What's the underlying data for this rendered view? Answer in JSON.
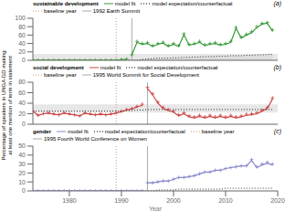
{
  "chart_data": [
    {
      "type": "line",
      "title": "sustainable development",
      "annotations": [
        "(a)"
      ],
      "x": [
        1973,
        1974,
        1975,
        1976,
        1977,
        1978,
        1979,
        1980,
        1981,
        1982,
        1983,
        1984,
        1985,
        1986,
        1987,
        1988,
        1989,
        1990,
        1991,
        1992,
        1993,
        1994,
        1995,
        1996,
        1997,
        1998,
        1999,
        2000,
        2001,
        2002,
        2003,
        2004,
        2005,
        2006,
        2007,
        2008,
        2009,
        2010,
        2011,
        2012,
        2013,
        2014,
        2015,
        2016,
        2017,
        2018,
        2019
      ],
      "xlim": [
        1973,
        2020
      ],
      "xticks": [
        1980,
        1990,
        2000,
        2010,
        2020
      ],
      "ylim": [
        0,
        100
      ],
      "yticks": [
        0,
        20,
        40,
        60,
        80,
        100
      ],
      "grid": false,
      "tick_labels": "y",
      "band": {
        "y": [
          0,
          15
        ],
        "color": "#d0d0d0"
      },
      "vlines": [
        {
          "x": 1989,
          "label": "baseline year",
          "color": "#cc9977",
          "line_style": "dotted"
        },
        {
          "x": 1992,
          "label": "1992 Earth Summit",
          "color": "#aaaaaa",
          "line_style": "solid"
        }
      ],
      "series": [
        {
          "name": "model fit",
          "type": "line",
          "color": "#3a9a3a",
          "line_style": "solid",
          "values": [
            0,
            0,
            0,
            0,
            0,
            0,
            0,
            0,
            0,
            0,
            0,
            0,
            0,
            0,
            0,
            0,
            0,
            1,
            2,
            null,
            null,
            null,
            null,
            null,
            null,
            null,
            null,
            null,
            null,
            null,
            null,
            null,
            null,
            null,
            null,
            null,
            null,
            null,
            null,
            null,
            null,
            null,
            null,
            null,
            null,
            null,
            null
          ]
        },
        {
          "type": "line",
          "color": "#3a9a3a",
          "line_style": "solid",
          "values": [
            null,
            null,
            null,
            null,
            null,
            null,
            null,
            null,
            null,
            null,
            null,
            null,
            null,
            null,
            null,
            null,
            null,
            null,
            null,
            13,
            43,
            38,
            40,
            33,
            38,
            41,
            33,
            38,
            33,
            61,
            36,
            38,
            43,
            35,
            38,
            40,
            36,
            38,
            43,
            76,
            53,
            60,
            66,
            78,
            86,
            88,
            70
          ]
        },
        {
          "name": "model expectation/counterfactual",
          "type": "area",
          "color": "#000000",
          "line_style": "dotted",
          "values": [
            0,
            0,
            0,
            0,
            0,
            0,
            0,
            0,
            0,
            0,
            0,
            0,
            0,
            0,
            0,
            0,
            0,
            0,
            0,
            0,
            0,
            2,
            3,
            4,
            5,
            5,
            5,
            6,
            6,
            7,
            7,
            8,
            8,
            9,
            9,
            9,
            10,
            10,
            11,
            11,
            11,
            12,
            12,
            13,
            13,
            14,
            14
          ]
        },
        {
          "type": "scatter",
          "color": "#3a9a3a",
          "marker": "plus",
          "values": [
            0,
            0,
            0,
            0,
            0,
            0,
            0,
            0,
            0,
            0,
            0,
            0,
            0,
            0,
            0,
            0,
            0,
            2,
            3,
            13,
            45,
            40,
            42,
            35,
            40,
            43,
            35,
            40,
            35,
            63,
            38,
            40,
            45,
            37,
            40,
            42,
            38,
            40,
            45,
            78,
            55,
            62,
            68,
            80,
            88,
            90,
            72
          ]
        }
      ]
    },
    {
      "type": "line",
      "title": "social development",
      "annotations": [
        "(b)"
      ],
      "ylabel": "Percentage of speakers in UNGA GD making at least one mention of term in statement",
      "x": [
        1973,
        1974,
        1975,
        1976,
        1977,
        1978,
        1979,
        1980,
        1981,
        1982,
        1983,
        1984,
        1985,
        1986,
        1987,
        1988,
        1989,
        1990,
        1991,
        1992,
        1993,
        1994,
        1995,
        1996,
        1997,
        1998,
        1999,
        2000,
        2001,
        2002,
        2003,
        2004,
        2005,
        2006,
        2007,
        2008,
        2009,
        2010,
        2011,
        2012,
        2013,
        2014,
        2015,
        2016,
        2017,
        2018,
        2019
      ],
      "xlim": [
        1973,
        2020
      ],
      "xticks": [
        1980,
        1990,
        2000,
        2010,
        2020
      ],
      "ylim": [
        0,
        80
      ],
      "yticks": [
        0,
        20,
        40,
        60,
        80
      ],
      "grid": false,
      "tick_labels": "y",
      "band": {
        "y": [
          22,
          38
        ],
        "color": "#d0d0d0"
      },
      "vlines": [
        {
          "x": 1989,
          "label": "baseline year",
          "color": "#cc9977",
          "line_style": "dotted"
        },
        {
          "x": 1995,
          "label": "1995 World Summit for Social Development",
          "color": "#aaaaaa",
          "line_style": "solid"
        }
      ],
      "series": [
        {
          "name": "model fit",
          "type": "line",
          "color": "#cc4444",
          "line_style": "solid",
          "values": [
            25,
            17,
            20,
            21,
            19,
            18,
            21,
            19,
            18,
            16,
            21,
            19,
            18,
            19,
            18,
            19,
            21,
            24,
            27,
            29,
            33,
            36,
            null,
            null,
            null,
            null,
            null,
            null,
            null,
            null,
            null,
            null,
            null,
            null,
            null,
            null,
            null,
            null,
            null,
            null,
            null,
            null,
            null,
            null,
            null,
            null,
            null
          ]
        },
        {
          "type": "line",
          "color": "#cc4444",
          "line_style": "solid",
          "values": [
            null,
            null,
            null,
            null,
            null,
            null,
            null,
            null,
            null,
            null,
            null,
            null,
            null,
            null,
            null,
            null,
            null,
            null,
            null,
            null,
            null,
            null,
            68,
            56,
            40,
            30,
            26,
            23,
            16,
            20,
            14,
            12,
            15,
            12,
            15,
            12,
            15,
            12,
            15,
            12,
            14,
            17,
            18,
            20,
            25,
            30,
            48
          ]
        },
        {
          "name": "model expectation/counterfactual",
          "type": "line",
          "color": "#000000",
          "line_style": "dotted",
          "values": [
            25,
            25,
            25,
            25,
            25,
            25,
            25,
            25,
            25,
            25,
            25,
            25,
            25,
            25,
            25,
            25,
            25,
            25,
            26,
            26,
            27,
            27,
            28,
            28,
            28,
            28,
            28,
            28,
            28,
            28,
            28,
            28,
            28,
            28,
            28,
            28,
            28,
            28,
            28,
            28,
            28,
            28,
            28,
            28,
            28,
            28,
            28
          ]
        },
        {
          "type": "scatter",
          "color": "#cc4444",
          "marker": "plus",
          "values": [
            25,
            17,
            20,
            22,
            20,
            18,
            22,
            20,
            18,
            16,
            22,
            20,
            18,
            20,
            18,
            20,
            22,
            25,
            28,
            30,
            34,
            38,
            70,
            58,
            42,
            32,
            28,
            25,
            18,
            22,
            16,
            14,
            17,
            14,
            17,
            14,
            17,
            14,
            17,
            14,
            16,
            19,
            20,
            22,
            27,
            32,
            50
          ]
        }
      ]
    },
    {
      "type": "line",
      "title": "gender",
      "annotations": [
        "(c)"
      ],
      "xlabel": "Year",
      "x": [
        1973,
        1974,
        1975,
        1976,
        1977,
        1978,
        1979,
        1980,
        1981,
        1982,
        1983,
        1984,
        1985,
        1986,
        1987,
        1988,
        1989,
        1990,
        1991,
        1992,
        1993,
        1994,
        1995,
        1996,
        1997,
        1998,
        1999,
        2000,
        2001,
        2002,
        2003,
        2004,
        2005,
        2006,
        2007,
        2008,
        2009,
        2010,
        2011,
        2012,
        2013,
        2014,
        2015,
        2016,
        2017,
        2018,
        2019
      ],
      "xlim": [
        1973,
        2020
      ],
      "xticks": [
        1980,
        1990,
        2000,
        2010,
        2020
      ],
      "ylim": [
        0,
        50
      ],
      "yticks": [
        0,
        10,
        20,
        30,
        40,
        50
      ],
      "grid": false,
      "vlines": [
        {
          "x": 1989,
          "label": "baseline year",
          "color": "#cc9977",
          "line_style": "dotted"
        },
        {
          "x": 1995,
          "label": "1995 Fourth World Conference on Women",
          "color": "#aaaaaa",
          "line_style": "solid"
        }
      ],
      "series": [
        {
          "name": "model fit",
          "type": "line",
          "color": "#8888cc",
          "line_style": "solid",
          "values": [
            0,
            0,
            0,
            0,
            0,
            0,
            0,
            0,
            0,
            0,
            0,
            0,
            0,
            0,
            0,
            0,
            0,
            0,
            0,
            0,
            0,
            0,
            null,
            null,
            null,
            null,
            null,
            null,
            null,
            null,
            null,
            null,
            null,
            null,
            null,
            null,
            null,
            null,
            null,
            null,
            null,
            null,
            null,
            null,
            null,
            null,
            null
          ]
        },
        {
          "type": "line",
          "color": "#8888cc",
          "line_style": "solid",
          "values": [
            null,
            null,
            null,
            null,
            null,
            null,
            null,
            null,
            null,
            null,
            null,
            null,
            null,
            null,
            null,
            null,
            null,
            null,
            null,
            null,
            null,
            null,
            9,
            9,
            10,
            11,
            11,
            13,
            15,
            15,
            16,
            17,
            19,
            21,
            21,
            23,
            23,
            25,
            26,
            27,
            28,
            28,
            34,
            26,
            29,
            31,
            29
          ]
        },
        {
          "name": "model expectation/counterfactual",
          "type": "line",
          "color": "#000000",
          "line_style": "dotted",
          "values": [
            0,
            0,
            0,
            0,
            0,
            0,
            0,
            0,
            0,
            0,
            0,
            0,
            0,
            0,
            0,
            0,
            0,
            0,
            0,
            0,
            0,
            0,
            0,
            0,
            1,
            1,
            1,
            1,
            2,
            2,
            2,
            2,
            2,
            2,
            2,
            2,
            2,
            3,
            3,
            3,
            3,
            3,
            3,
            3,
            3,
            3,
            3
          ]
        },
        {
          "type": "scatter",
          "color": "#8888cc",
          "marker": "plus",
          "values": [
            0,
            0,
            0,
            0,
            0,
            0,
            0,
            0,
            0,
            0,
            0,
            0,
            0,
            0,
            0,
            0,
            0,
            0,
            0,
            0,
            0,
            0,
            9,
            9,
            10,
            11,
            11,
            13,
            15,
            15,
            16,
            17,
            19,
            21,
            21,
            23,
            23,
            25,
            26,
            27,
            28,
            28,
            35,
            27,
            30,
            32,
            30
          ]
        }
      ]
    }
  ]
}
